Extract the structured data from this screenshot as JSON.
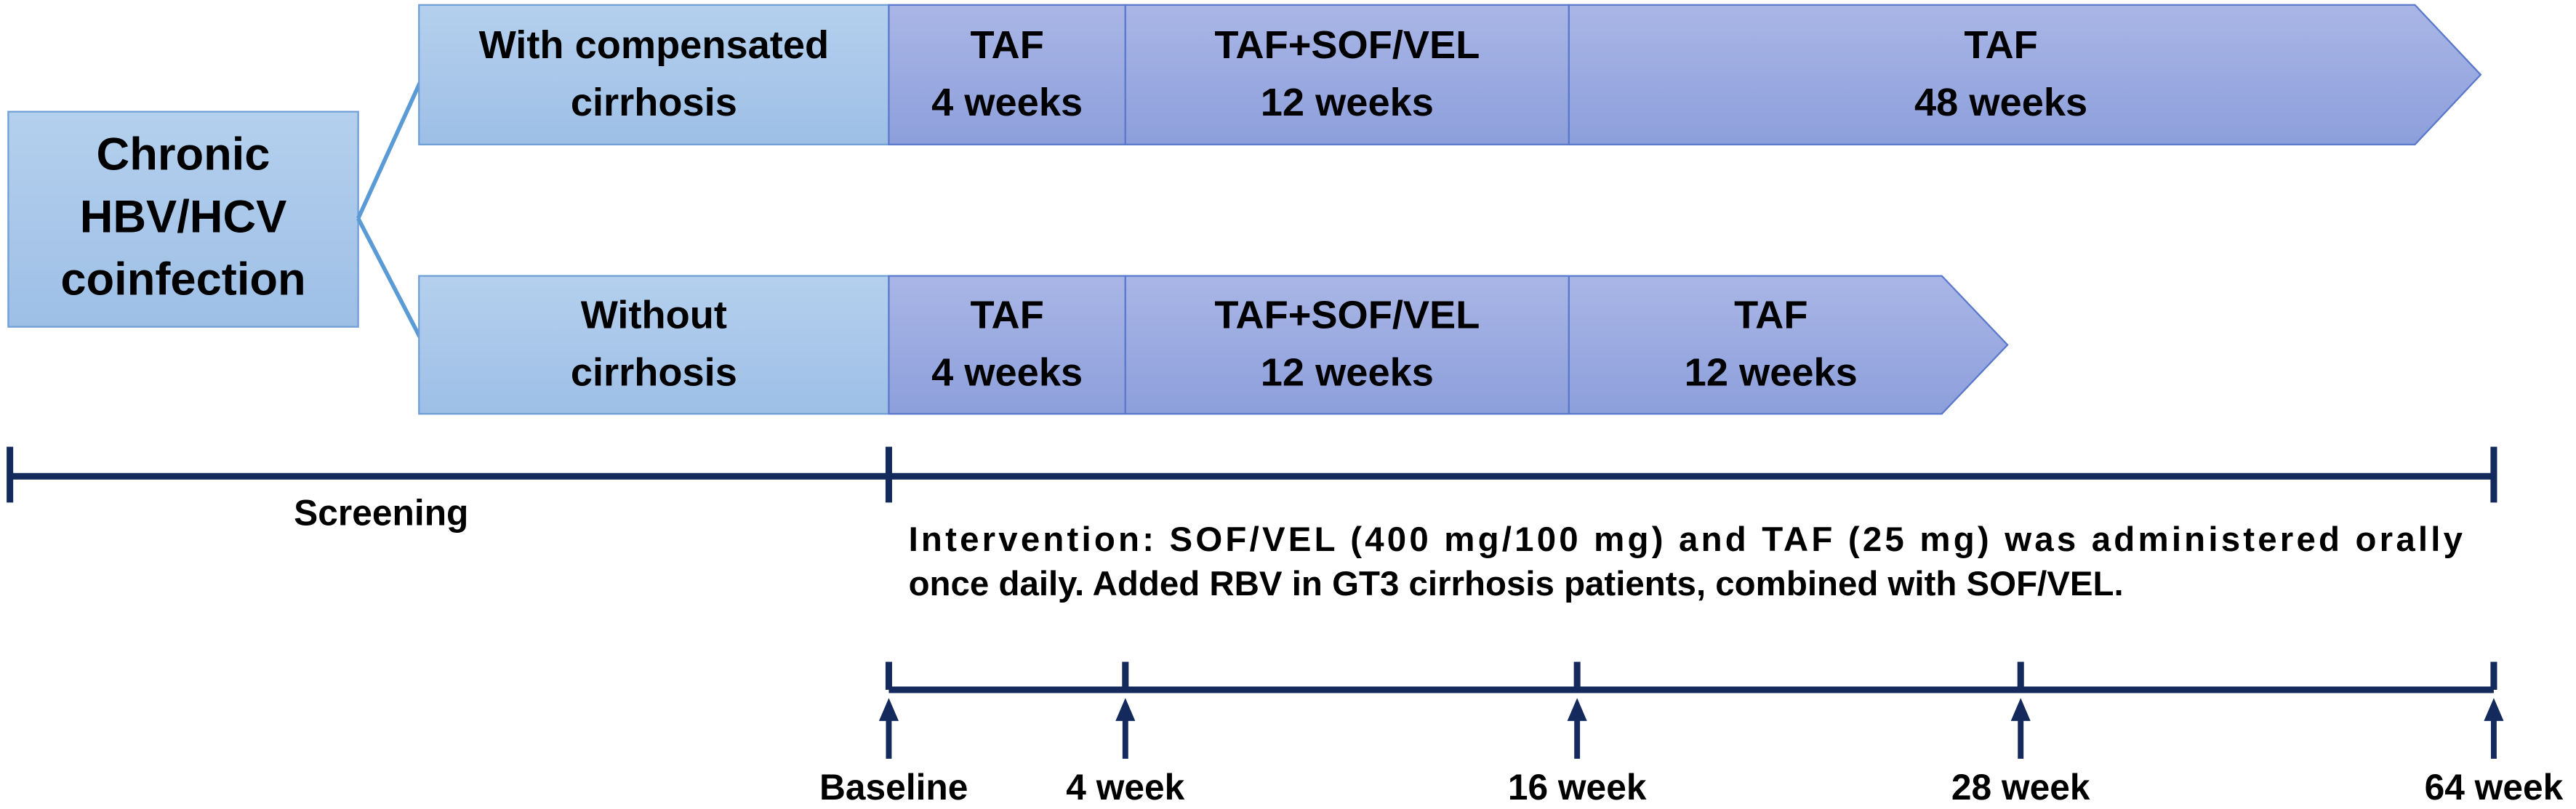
{
  "source": {
    "lines": [
      "Chronic",
      "HBV/HCV",
      "coinfection"
    ]
  },
  "arms": [
    {
      "label": [
        "With compensated",
        "cirrhosis"
      ],
      "phases": [
        {
          "lines": [
            "TAF",
            "4 weeks"
          ]
        },
        {
          "lines": [
            "TAF+SOF/VEL",
            "12 weeks"
          ]
        },
        {
          "lines": [
            "TAF",
            "48 weeks"
          ]
        }
      ]
    },
    {
      "label": [
        "Without",
        "cirrhosis"
      ],
      "phases": [
        {
          "lines": [
            "TAF",
            "4 weeks"
          ]
        },
        {
          "lines": [
            "TAF+SOF/VEL",
            "12 weeks"
          ]
        },
        {
          "lines": [
            "TAF",
            "12 weeks"
          ]
        }
      ]
    }
  ],
  "screening": "Screening",
  "intervention": {
    "lines": [
      "Intervention: SOF/VEL (400 mg/100 mg) and TAF (25 mg) was administered orally",
      "once daily. Added RBV in GT3 cirrhosis patients, combined with SOF/VEL."
    ]
  },
  "timepoints": [
    "Baseline",
    "4 week",
    "16 week",
    "28 week",
    "64 week"
  ]
}
